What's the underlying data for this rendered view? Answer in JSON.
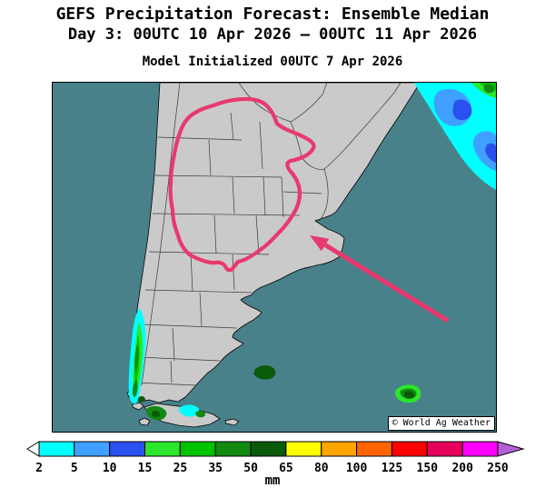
{
  "header": {
    "title": "GEFS Precipitation Forecast: Ensemble Median",
    "valid_period": "Day 3: 00UTC 10 Apr 2026 — 00UTC 11 Apr 2026",
    "initialized": "Model Initialized 00UTC 7 Apr 2026"
  },
  "map": {
    "region": "southern-south-america",
    "watermark": "© World Ag Weather",
    "annotation": {
      "type": "hand-drawn-highlight-outline-with-arrow",
      "color": "#E8396E"
    }
  },
  "legend": {
    "units": "mm",
    "tick_labels": [
      "2",
      "5",
      "10",
      "15",
      "25",
      "35",
      "50",
      "65",
      "80",
      "100",
      "125",
      "150",
      "200",
      "250"
    ],
    "colors": [
      "#FFFFFF",
      "#00FFFF",
      "#3FA0FF",
      "#2B50F0",
      "#2BE62B",
      "#00C300",
      "#128A12",
      "#0A5A0A",
      "#FFFF00",
      "#FFA500",
      "#FF6400",
      "#FF0000",
      "#E6005C",
      "#FF00FF",
      "#B45FD7"
    ]
  },
  "colors": {
    "background": "#FFFFFF",
    "ocean": "#49818A",
    "land": "#CACACA",
    "border": "#3A3A3A",
    "frame": "#000000",
    "annotation_pink": "#E8396E"
  }
}
